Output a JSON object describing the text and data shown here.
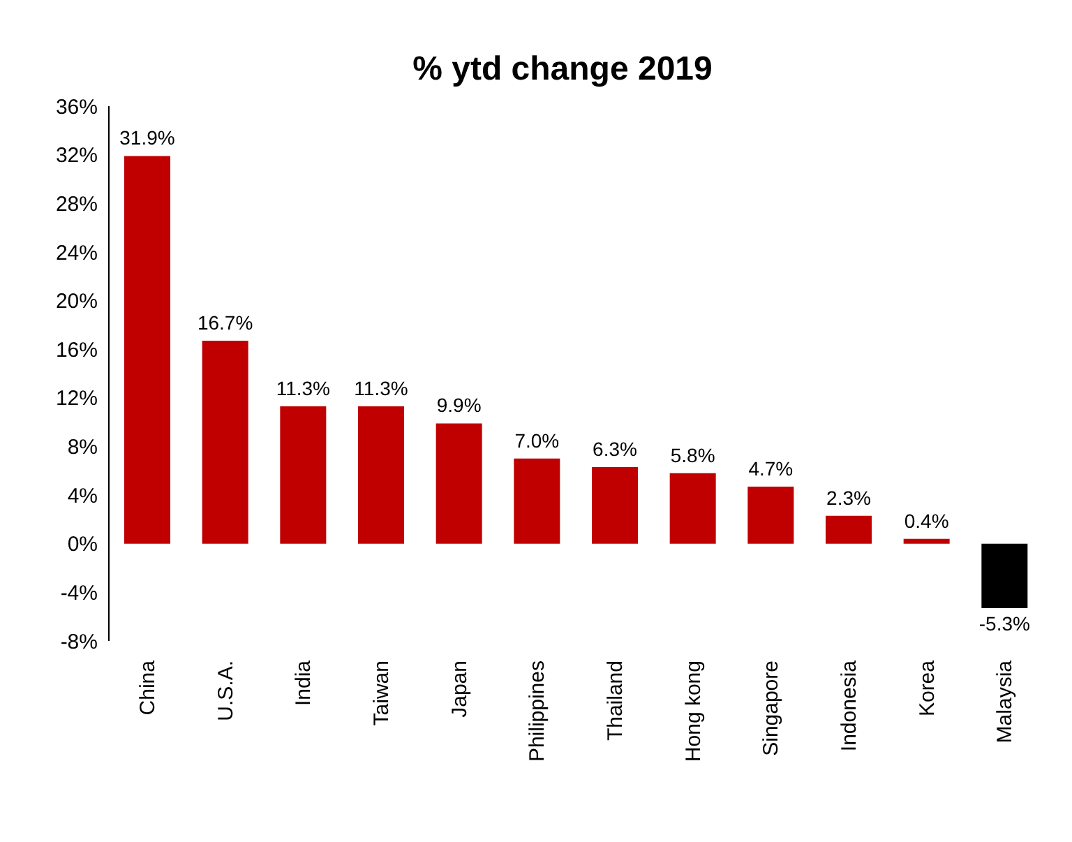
{
  "chart_data": {
    "type": "bar",
    "title": "% ytd change 2019",
    "categories": [
      "China",
      "U.S.A.",
      "India",
      "Taiwan",
      "Japan",
      "Philippines",
      "Thailand",
      "Hong kong",
      "Singapore",
      "Indonesia",
      "Korea",
      "Malaysia"
    ],
    "values": [
      31.9,
      16.7,
      11.3,
      11.3,
      9.9,
      7.0,
      6.3,
      5.8,
      4.7,
      2.3,
      0.4,
      -5.3
    ],
    "value_labels": [
      "31.9%",
      "16.7%",
      "11.3%",
      "11.3%",
      "9.9%",
      "7.0%",
      "6.3%",
      "5.8%",
      "4.7%",
      "2.3%",
      "0.4%",
      "-5.3%"
    ],
    "colors": [
      "#c00000",
      "#c00000",
      "#c00000",
      "#c00000",
      "#c00000",
      "#c00000",
      "#c00000",
      "#c00000",
      "#c00000",
      "#c00000",
      "#c00000",
      "#000000"
    ],
    "ylim": [
      -8,
      36
    ],
    "yticks": [
      {
        "value": -8,
        "label": "-8%"
      },
      {
        "value": -4,
        "label": "-4%"
      },
      {
        "value": 0,
        "label": "0%"
      },
      {
        "value": 4,
        "label": "4%"
      },
      {
        "value": 8,
        "label": "8%"
      },
      {
        "value": 12,
        "label": "12%"
      },
      {
        "value": 16,
        "label": "16%"
      },
      {
        "value": 20,
        "label": "20%"
      },
      {
        "value": 24,
        "label": "24%"
      },
      {
        "value": 28,
        "label": "28%"
      },
      {
        "value": 32,
        "label": "32%"
      },
      {
        "value": 36,
        "label": "36%"
      }
    ],
    "grid": false,
    "legend": false
  }
}
